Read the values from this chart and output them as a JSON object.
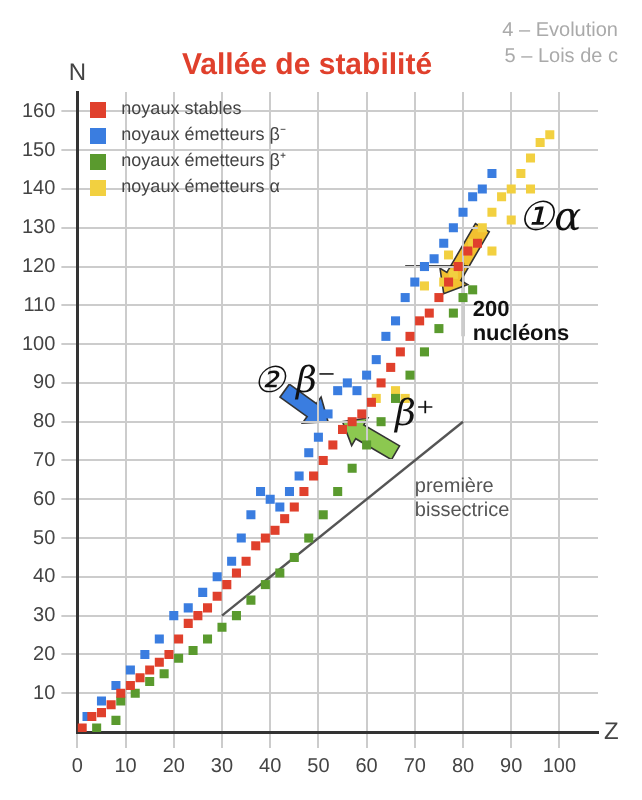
{
  "chart_data": {
    "type": "scatter",
    "title": "Vallée de stabilité",
    "xlabel": "Z",
    "ylabel": "N",
    "xlim": [
      0,
      108
    ],
    "xticks": [
      0,
      10,
      20,
      30,
      40,
      50,
      60,
      70,
      80,
      90,
      100
    ],
    "ylim": [
      0,
      165
    ],
    "yticks": [
      10,
      20,
      30,
      40,
      50,
      60,
      70,
      80,
      90,
      100,
      110,
      120,
      130,
      140,
      150,
      160
    ],
    "grid": true,
    "legend": "top left",
    "marker": "square",
    "series": [
      {
        "name": "noyaux stables",
        "color": "#e0402c",
        "x": [
          1,
          3,
          5,
          7,
          9,
          11,
          13,
          15,
          17,
          19,
          21,
          23,
          25,
          27,
          29,
          31,
          33,
          35,
          37,
          39,
          41,
          43,
          45,
          47,
          49,
          51,
          53,
          55,
          57,
          59,
          61,
          63,
          65,
          67,
          69,
          71,
          73,
          75,
          77,
          79,
          81,
          83
        ],
        "values": [
          1,
          4,
          5,
          7,
          10,
          12,
          14,
          16,
          18,
          20,
          24,
          28,
          30,
          32,
          35,
          38,
          41,
          44,
          48,
          50,
          52,
          55,
          58,
          62,
          66,
          70,
          74,
          78,
          80,
          82,
          85,
          90,
          94,
          98,
          102,
          106,
          108,
          112,
          116,
          120,
          124,
          126
        ]
      },
      {
        "name": "noyaux émetteurs β⁻",
        "color": "#3a7de0",
        "x": [
          2,
          5,
          8,
          11,
          14,
          17,
          20,
          23,
          26,
          29,
          32,
          34,
          36,
          38,
          40,
          42,
          44,
          46,
          48,
          50,
          52,
          54,
          56,
          58,
          60,
          62,
          64,
          66,
          68,
          70,
          72,
          74,
          76,
          78,
          80,
          82,
          84,
          86
        ],
        "values": [
          4,
          8,
          12,
          16,
          20,
          24,
          30,
          32,
          36,
          40,
          44,
          50,
          56,
          62,
          60,
          58,
          62,
          66,
          72,
          76,
          82,
          88,
          90,
          88,
          92,
          96,
          102,
          106,
          112,
          116,
          120,
          122,
          126,
          130,
          134,
          138,
          140,
          144
        ]
      },
      {
        "name": "noyaux émetteurs β⁺",
        "color": "#5a9a2e",
        "x": [
          4,
          8,
          9,
          12,
          15,
          18,
          21,
          24,
          27,
          30,
          33,
          36,
          39,
          42,
          45,
          48,
          51,
          54,
          57,
          60,
          63,
          66,
          69,
          72,
          75,
          78,
          80,
          82
        ],
        "values": [
          1,
          3,
          8,
          10,
          13,
          15,
          19,
          21,
          24,
          27,
          30,
          34,
          38,
          41,
          45,
          50,
          56,
          62,
          68,
          74,
          80,
          86,
          92,
          98,
          104,
          108,
          112,
          114
        ]
      },
      {
        "name": "noyaux émetteurs α",
        "color": "#f2d040",
        "x": [
          62,
          66,
          68,
          72,
          76,
          78,
          77,
          82,
          84,
          86,
          86,
          88,
          90,
          90,
          92,
          94,
          94,
          96,
          98
        ],
        "values": [
          86,
          88,
          86,
          115,
          116,
          118,
          123,
          126,
          130,
          124,
          134,
          138,
          132,
          140,
          144,
          140,
          148,
          152,
          154
        ]
      },
      {
        "type": "line",
        "marker": "none",
        "color": "#555555",
        "x": [
          30,
          80
        ],
        "values": [
          30,
          80
        ]
      }
    ],
    "annotations": [
      "①α",
      "② β⁻",
      "β⁺",
      "première bissectrice",
      "200 nucléons",
      "4 – Evolution",
      "5 – Lois de c"
    ]
  }
}
